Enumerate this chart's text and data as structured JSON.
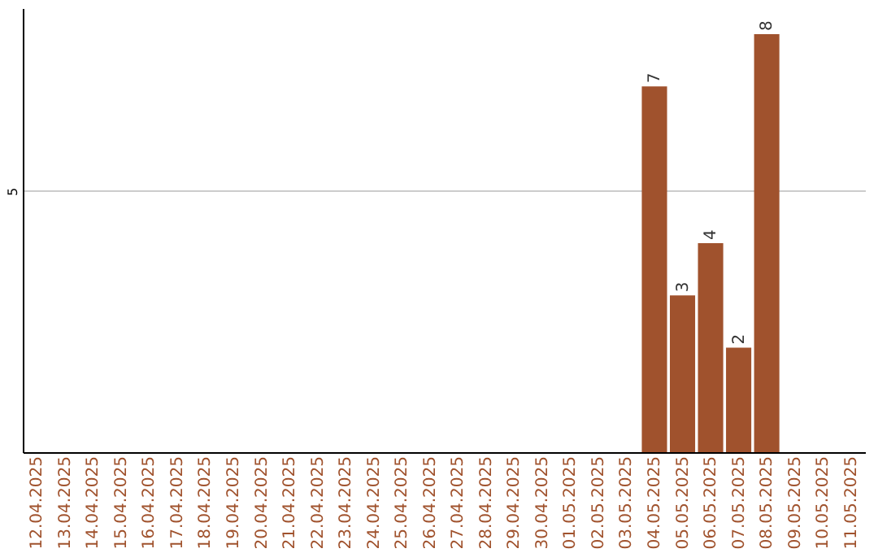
{
  "chart_data": {
    "type": "bar",
    "categories": [
      "12.04.2025",
      "13.04.2025",
      "14.04.2025",
      "15.04.2025",
      "16.04.2025",
      "17.04.2025",
      "18.04.2025",
      "19.04.2025",
      "20.04.2025",
      "21.04.2025",
      "22.04.2025",
      "23.04.2025",
      "24.04.2025",
      "25.04.2025",
      "26.04.2025",
      "27.04.2025",
      "28.04.2025",
      "29.04.2025",
      "30.04.2025",
      "01.05.2025",
      "02.05.2025",
      "03.05.2025",
      "04.05.2025",
      "05.05.2025",
      "06.05.2025",
      "07.05.2025",
      "08.05.2025",
      "09.05.2025",
      "10.05.2025",
      "11.05.2025"
    ],
    "values": [
      null,
      null,
      null,
      null,
      null,
      null,
      null,
      null,
      null,
      null,
      null,
      null,
      null,
      null,
      null,
      null,
      null,
      null,
      null,
      null,
      null,
      null,
      7,
      3,
      4,
      2,
      8,
      null,
      null,
      null
    ],
    "color": "#a0522d",
    "ylim": [
      0,
      8.5
    ],
    "yticks": [
      5
    ],
    "grid": "y",
    "data_labels": true
  }
}
